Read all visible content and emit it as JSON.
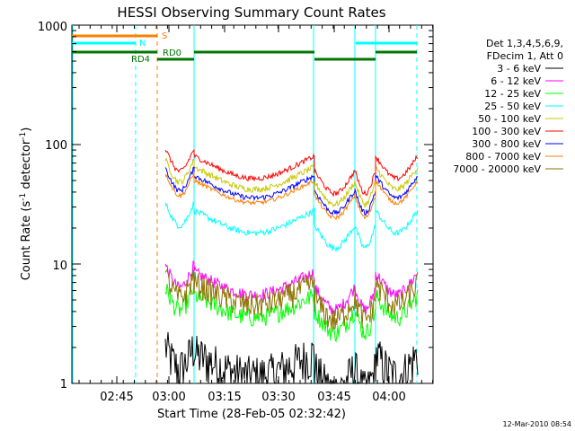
{
  "chart_data": {
    "type": "line",
    "title": "HESSI Observing Summary Count Rates",
    "xlabel": "Start Time (28-Feb-05 02:32:42)",
    "ylabel_main": "Count Rate (s",
    "ylabel_sup1": "-1",
    "ylabel_mid": " detector",
    "ylabel_sup2": "-1",
    "ylabel_end": ")",
    "x_range_minutes": [
      "02:32:42",
      "04:12:00"
    ],
    "y_scale": "log",
    "ylim": [
      1,
      1000
    ],
    "x_ticks": [
      "02:45",
      "03:00",
      "03:15",
      "03:30",
      "03:45",
      "04:00"
    ],
    "y_ticks": [
      "1",
      "10",
      "100",
      "1000"
    ],
    "legend_header": [
      "Det 1,3,4,5,6,9,",
      "FDecim 1, Att 0"
    ],
    "legend_placement": "right",
    "series": [
      {
        "name": "3 - 6 keV",
        "color": "#000000",
        "approx_level": 1.8
      },
      {
        "name": "6 - 12 keV",
        "color": "#ff00ff",
        "approx_level": 8.5
      },
      {
        "name": "12 - 25 keV",
        "color": "#00ff00",
        "approx_level": 5.5
      },
      {
        "name": "25 - 50 keV",
        "color": "#00ffff",
        "approx_level": 28
      },
      {
        "name": "50 - 100 keV",
        "color": "#c8c800",
        "approx_level": 65
      },
      {
        "name": "100 - 300 keV",
        "color": "#ff0000",
        "approx_level": 80
      },
      {
        "name": "300 - 800 keV",
        "color": "#0000ff",
        "approx_level": 55
      },
      {
        "name": "800 - 7000 keV",
        "color": "#ff7f00",
        "approx_level": 50
      },
      {
        "name": "7000 - 20000 keV",
        "color": "#8b7300",
        "approx_level": 7
      }
    ],
    "flags": [
      {
        "label": "S",
        "color": "#ff7f00"
      },
      {
        "label": "N",
        "color": "#00ffff"
      },
      {
        "label": "RD4",
        "color": "#007700"
      },
      {
        "label": "RD0",
        "color": "#007700"
      }
    ],
    "footer_date": "12-Mar-2010 08:54"
  }
}
